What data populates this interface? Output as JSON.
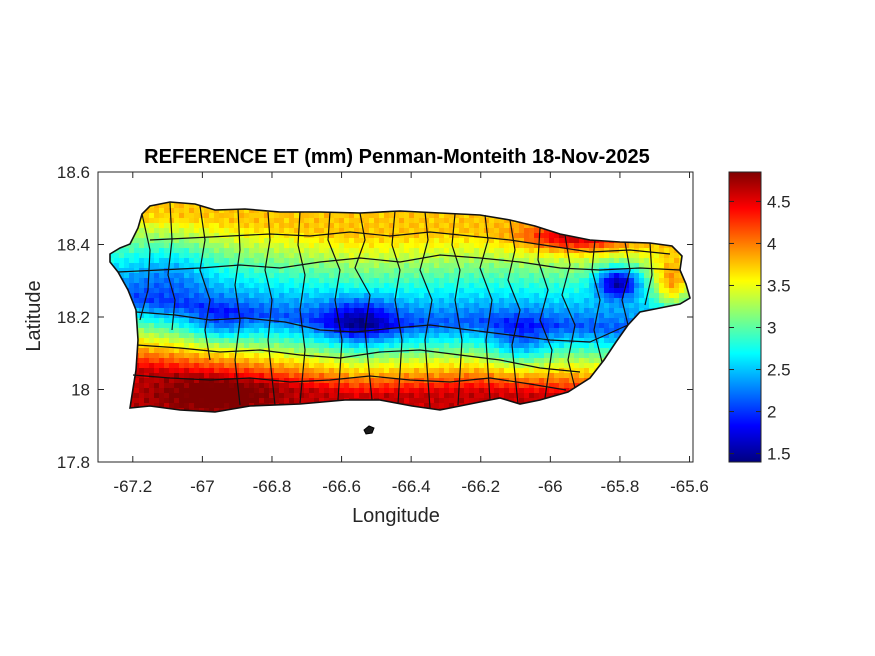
{
  "chart_data": {
    "type": "heatmap",
    "title": "REFERENCE ET (mm) Penman-Monteith 18-Nov-2025",
    "xlabel": "Longitude",
    "ylabel": "Latitude",
    "xlim": [
      -67.3,
      -65.59
    ],
    "ylim": [
      17.8,
      18.6
    ],
    "xticks": [
      -67.2,
      -67,
      -66.8,
      -66.6,
      -66.4,
      -66.2,
      -66,
      -65.8,
      -65.6
    ],
    "xtick_labels": [
      "-67.2",
      "-67",
      "-66.8",
      "-66.6",
      "-66.4",
      "-66.2",
      "-66",
      "-65.8",
      "-65.6"
    ],
    "yticks": [
      17.8,
      18,
      18.2,
      18.4,
      18.6
    ],
    "ytick_labels": [
      "17.8",
      "18",
      "18.2",
      "18.4",
      "18.6"
    ],
    "colormap": "jet",
    "colorbar": {
      "range": [
        1.4,
        4.85
      ],
      "ticks": [
        1.5,
        2,
        2.5,
        3,
        3.5,
        4,
        4.5
      ],
      "tick_labels": [
        "1.5",
        "2",
        "2.5",
        "3",
        "3.5",
        "4",
        "4.5"
      ],
      "placement": "right"
    },
    "grid": false,
    "pattern": "High ET (4-4.8 mm) along the southern and northeastern coasts; moderate ET (3.5-4 mm) along the northern coast; low ET (1.5-2.5 mm) over the central mountain ridge and the eastern highlands"
  }
}
